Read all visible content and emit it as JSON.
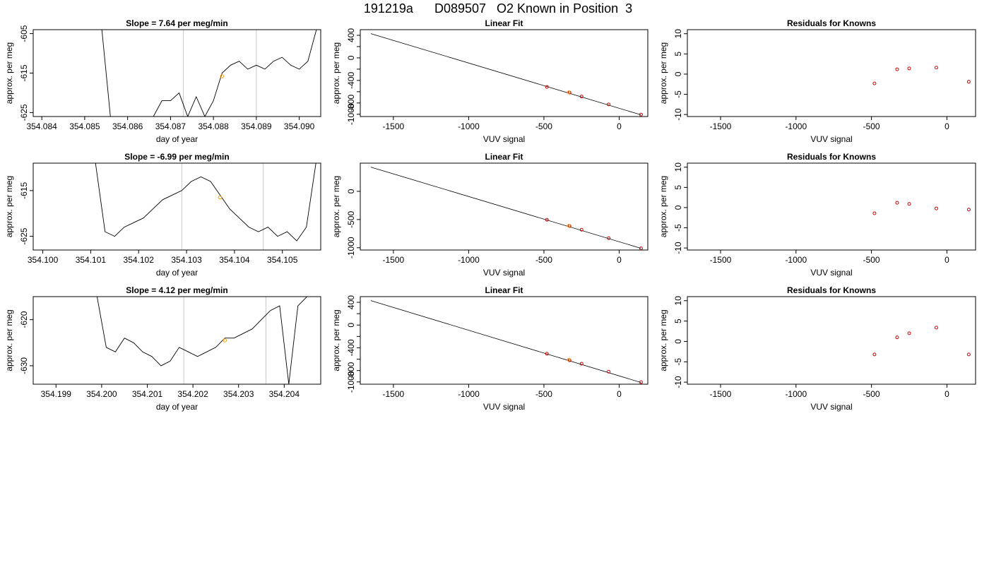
{
  "figure_title": "191219a      D089507   O2 Known in Position  3",
  "chart_data": [
    {
      "type": "line",
      "title": "Slope =  7.64  per meg/min",
      "xlabel": "day of year",
      "ylabel": "approx. per meg",
      "xlim": [
        354.0838,
        354.0905
      ],
      "ylim": [
        -626,
        -604
      ],
      "x_ticks": [
        354.084,
        354.085,
        354.086,
        354.087,
        354.088,
        354.089,
        354.09
      ],
      "x_tick_labels": [
        "354.084",
        "354.085",
        "354.086",
        "354.087",
        "354.088",
        "354.089",
        "354.090"
      ],
      "y_ticks": [
        -625,
        -615,
        -605
      ],
      "y_tick_labels": [
        "-625",
        "-615",
        "-605"
      ],
      "vlines": [
        354.0873,
        354.089
      ],
      "highlight_point": {
        "x": 354.0882,
        "y": -615.8
      },
      "series": [
        {
          "x": [
            354.0854,
            354.0856,
            354.0858,
            354.086,
            354.0862,
            354.0864,
            354.0866,
            354.0868,
            354.087,
            354.0872,
            354.0874,
            354.0876,
            354.0878,
            354.088,
            354.0882,
            354.0884,
            354.0886,
            354.0888,
            354.089,
            354.0892,
            354.0894,
            354.0896,
            354.0898,
            354.09,
            354.0902,
            354.0904
          ],
          "y": [
            -604,
            -626,
            -626,
            -626,
            -626,
            -626,
            -626,
            -622,
            -622,
            -620,
            -626,
            -621,
            -626,
            -622,
            -615,
            -613,
            -612,
            -614,
            -613,
            -614,
            -612,
            -611,
            -613,
            -614,
            -612,
            -604
          ]
        }
      ]
    },
    {
      "type": "line",
      "title": "Slope =  -6.99  per meg/min",
      "xlabel": "day of year",
      "ylabel": "approx. per meg",
      "xlim": [
        354.0998,
        354.1058
      ],
      "ylim": [
        -628,
        -609
      ],
      "x_ticks": [
        354.1,
        354.101,
        354.102,
        354.103,
        354.104,
        354.105
      ],
      "x_tick_labels": [
        "354.100",
        "354.101",
        "354.102",
        "354.103",
        "354.104",
        "354.105"
      ],
      "y_ticks": [
        -625,
        -615
      ],
      "y_tick_labels": [
        "-625",
        "-615"
      ],
      "vlines": [
        354.1029,
        354.1046
      ],
      "highlight_point": {
        "x": 354.1037,
        "y": -616.5
      },
      "series": [
        {
          "x": [
            354.1011,
            354.1013,
            354.1015,
            354.1017,
            354.1019,
            354.1021,
            354.1023,
            354.1025,
            354.1027,
            354.1029,
            354.1031,
            354.1033,
            354.1035,
            354.1037,
            354.1039,
            354.1041,
            354.1043,
            354.1045,
            354.1047,
            354.1049,
            354.1051,
            354.1053,
            354.1055,
            354.1057
          ],
          "y": [
            -609,
            -624,
            -625,
            -623,
            -622,
            -621,
            -619,
            -617,
            -616,
            -615,
            -613,
            -612,
            -613,
            -616,
            -619,
            -621,
            -623,
            -624,
            -623,
            -625,
            -624,
            -626,
            -623,
            -609
          ]
        }
      ]
    },
    {
      "type": "line",
      "title": "Slope =  4.12  per meg/min",
      "xlabel": "day of year",
      "ylabel": "approx. per meg",
      "xlim": [
        354.1985,
        354.2048
      ],
      "ylim": [
        -634,
        -615
      ],
      "x_ticks": [
        354.199,
        354.2,
        354.201,
        354.202,
        354.203,
        354.204
      ],
      "x_tick_labels": [
        "354.199",
        "354.200",
        "354.201",
        "354.202",
        "354.203",
        "354.204"
      ],
      "y_ticks": [
        -630,
        -620
      ],
      "y_tick_labels": [
        "-630",
        "-620"
      ],
      "vlines": [
        354.2018,
        354.2036
      ],
      "highlight_point": {
        "x": 354.2027,
        "y": -624.5
      },
      "series": [
        {
          "x": [
            354.1999,
            354.2001,
            354.2003,
            354.2005,
            354.2007,
            354.2009,
            354.2011,
            354.2013,
            354.2015,
            354.2017,
            354.2019,
            354.2021,
            354.2023,
            354.2025,
            354.2027,
            354.2029,
            354.2031,
            354.2033,
            354.2035,
            354.2037,
            354.2039,
            354.2041,
            354.2043,
            354.2045
          ],
          "y": [
            -615,
            -626,
            -627,
            -624,
            -625,
            -627,
            -628,
            -630,
            -629,
            -626,
            -627,
            -628,
            -627,
            -626,
            -624,
            -624,
            -623,
            -622,
            -620,
            -618,
            -617,
            -634,
            -617,
            -615
          ]
        }
      ]
    },
    {
      "type": "scatter",
      "title": "Linear Fit",
      "xlabel": "VUV signal",
      "ylabel": "approx. per meg",
      "xlim": [
        -1720,
        190
      ],
      "ylim": [
        -1040,
        500
      ],
      "x_ticks": [
        -1500,
        -1000,
        -500,
        0
      ],
      "x_tick_labels": [
        "-1500",
        "-1000",
        "-500",
        "0"
      ],
      "y_ticks": [
        400,
        200,
        0,
        -200,
        -400,
        -600,
        -800,
        -1000
      ],
      "y_tick_labels": [
        "400",
        "",
        "0",
        "",
        "-400",
        "",
        "-800",
        "-1000"
      ],
      "fit_line": {
        "x": [
          -1650,
          145
        ],
        "y": [
          430,
          -1010
        ]
      },
      "points": [
        {
          "x": -480,
          "y": -515,
          "color": "#cc0000"
        },
        {
          "x": -330,
          "y": -615,
          "color": "#cc0000"
        },
        {
          "x": -250,
          "y": -685,
          "color": "#cc0000"
        },
        {
          "x": -70,
          "y": -825,
          "color": "#cc0000"
        },
        {
          "x": 145,
          "y": -1005,
          "color": "#cc0000"
        },
        {
          "x": -335,
          "y": -610,
          "color": "#ff9900"
        }
      ]
    },
    {
      "type": "scatter",
      "title": "Linear Fit",
      "xlabel": "VUV signal",
      "ylabel": "approx. per meg",
      "xlim": [
        -1720,
        190
      ],
      "ylim": [
        -1040,
        500
      ],
      "x_ticks": [
        -1500,
        -1000,
        -500,
        0
      ],
      "x_tick_labels": [
        "-1500",
        "-1000",
        "-500",
        "0"
      ],
      "y_ticks": [
        0,
        -500,
        -1000
      ],
      "y_tick_labels": [
        "0",
        "-500",
        "-1000"
      ],
      "fit_line": {
        "x": [
          -1650,
          145
        ],
        "y": [
          430,
          -1010
        ]
      },
      "points": [
        {
          "x": -480,
          "y": -505,
          "color": "#cc0000"
        },
        {
          "x": -330,
          "y": -615,
          "color": "#cc0000"
        },
        {
          "x": -250,
          "y": -680,
          "color": "#cc0000"
        },
        {
          "x": -70,
          "y": -830,
          "color": "#cc0000"
        },
        {
          "x": 145,
          "y": -1010,
          "color": "#cc0000"
        },
        {
          "x": -335,
          "y": -610,
          "color": "#ff9900"
        }
      ]
    },
    {
      "type": "scatter",
      "title": "Linear Fit",
      "xlabel": "VUV signal",
      "ylabel": "approx. per meg",
      "xlim": [
        -1720,
        190
      ],
      "ylim": [
        -1040,
        500
      ],
      "x_ticks": [
        -1500,
        -1000,
        -500,
        0
      ],
      "x_tick_labels": [
        "-1500",
        "-1000",
        "-500",
        "0"
      ],
      "y_ticks": [
        400,
        200,
        0,
        -200,
        -400,
        -600,
        -800,
        -1000
      ],
      "y_tick_labels": [
        "400",
        "",
        "0",
        "",
        "-400",
        "",
        "-800",
        "-1000"
      ],
      "fit_line": {
        "x": [
          -1650,
          145
        ],
        "y": [
          430,
          -1010
        ]
      },
      "points": [
        {
          "x": -480,
          "y": -505,
          "color": "#cc0000"
        },
        {
          "x": -330,
          "y": -620,
          "color": "#cc0000"
        },
        {
          "x": -250,
          "y": -680,
          "color": "#cc0000"
        },
        {
          "x": -70,
          "y": -820,
          "color": "#cc0000"
        },
        {
          "x": 145,
          "y": -1005,
          "color": "#cc0000"
        },
        {
          "x": -335,
          "y": -610,
          "color": "#ff9900"
        }
      ]
    },
    {
      "type": "scatter",
      "title": "Residuals for Knowns",
      "xlabel": "VUV signal",
      "ylabel": "approx. per meg",
      "xlim": [
        -1720,
        190
      ],
      "ylim": [
        -10.5,
        11
      ],
      "x_ticks": [
        -1500,
        -1000,
        -500,
        0
      ],
      "x_tick_labels": [
        "-1500",
        "-1000",
        "-500",
        "0"
      ],
      "y_ticks": [
        10,
        5,
        0,
        -5,
        -10
      ],
      "y_tick_labels": [
        "10",
        "5",
        "0",
        "-5",
        "-10"
      ],
      "points": [
        {
          "x": -480,
          "y": -2.3,
          "color": "#cc0000"
        },
        {
          "x": -330,
          "y": 1.2,
          "color": "#cc0000"
        },
        {
          "x": -250,
          "y": 1.4,
          "color": "#cc0000"
        },
        {
          "x": -70,
          "y": 1.6,
          "color": "#cc0000"
        },
        {
          "x": 145,
          "y": -1.9,
          "color": "#cc0000"
        }
      ]
    },
    {
      "type": "scatter",
      "title": "Residuals for Knowns",
      "xlabel": "VUV signal",
      "ylabel": "approx. per meg",
      "xlim": [
        -1720,
        190
      ],
      "ylim": [
        -10.5,
        11
      ],
      "x_ticks": [
        -1500,
        -1000,
        -500,
        0
      ],
      "x_tick_labels": [
        "-1500",
        "-1000",
        "-500",
        "0"
      ],
      "y_ticks": [
        10,
        5,
        0,
        -5,
        -10
      ],
      "y_tick_labels": [
        "10",
        "5",
        "0",
        "-5",
        "-10"
      ],
      "points": [
        {
          "x": -480,
          "y": -1.4,
          "color": "#cc0000"
        },
        {
          "x": -330,
          "y": 1.2,
          "color": "#cc0000"
        },
        {
          "x": -250,
          "y": 0.9,
          "color": "#cc0000"
        },
        {
          "x": -70,
          "y": -0.2,
          "color": "#cc0000"
        },
        {
          "x": 145,
          "y": -0.5,
          "color": "#cc0000"
        }
      ]
    },
    {
      "type": "scatter",
      "title": "Residuals for Knowns",
      "xlabel": "VUV signal",
      "ylabel": "approx. per meg",
      "xlim": [
        -1720,
        190
      ],
      "ylim": [
        -10.5,
        11
      ],
      "x_ticks": [
        -1500,
        -1000,
        -500,
        0
      ],
      "x_tick_labels": [
        "-1500",
        "-1000",
        "-500",
        "0"
      ],
      "y_ticks": [
        10,
        5,
        0,
        -5,
        -10
      ],
      "y_tick_labels": [
        "10",
        "5",
        "0",
        "-5",
        "-10"
      ],
      "points": [
        {
          "x": -480,
          "y": -3.2,
          "color": "#cc0000"
        },
        {
          "x": -330,
          "y": 1.0,
          "color": "#cc0000"
        },
        {
          "x": -250,
          "y": 2.0,
          "color": "#cc0000"
        },
        {
          "x": -70,
          "y": 3.4,
          "color": "#cc0000"
        },
        {
          "x": 145,
          "y": -3.2,
          "color": "#cc0000"
        }
      ]
    }
  ]
}
